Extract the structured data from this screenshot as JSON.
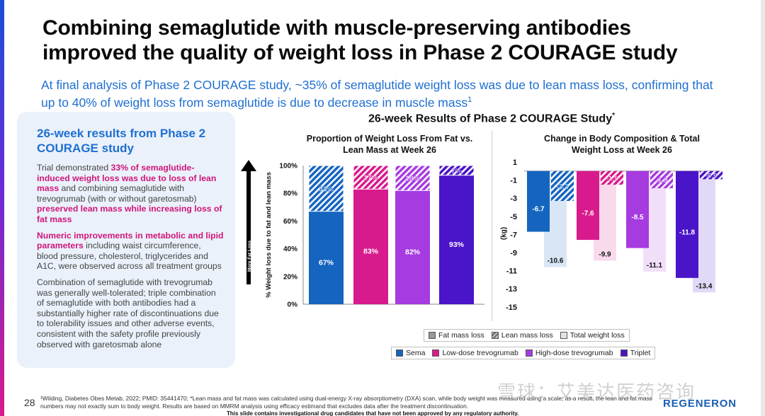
{
  "title": "Combining semaglutide with muscle-preserving antibodies improved the quality of weight loss in Phase 2 COURAGE study",
  "subtitle": "At final analysis of Phase 2 COURAGE study, ~35% of semaglutide weight loss was due to lean mass loss, confirming that up to 40% of weight loss from semaglutide is due to decrease in muscle mass",
  "subtitle_sup": "1",
  "side": {
    "title": "26-week results from Phase 2 COURAGE study",
    "p1_a": "Trial demonstrated ",
    "p1_b": "33% of semaglutide-induced weight loss was due to loss of lean mass",
    "p1_c": " and combining semaglutide with trevogrumab (with or without garetosmab) ",
    "p1_d": "preserved lean mass while increasing loss of fat mass",
    "p2_a": "Numeric improvements in metabolic and lipid parameters",
    "p2_b": " including waist circumference, blood pressure, cholesterol, triglycerides and A1C, were observed across all treatment groups",
    "p3": "Combination of semaglutide with trevogrumab was generally well-tolerated; triple combination of semaglutide with both antibodies had a substantially higher rate of discontinuations due to tolerability issues and other adverse events, consistent with the safety profile previously observed with garetosmab alone"
  },
  "chart_heading": "26-week Results of Phase 2 COURAGE Study",
  "chart_heading_sup": "*",
  "legend_mass": [
    "Fat mass loss",
    "Lean mass loss",
    "Total weight loss"
  ],
  "legend_groups": [
    "Sema",
    "Low-dose trevogrumab",
    "High-dose trevogrumab",
    "Triplet"
  ],
  "colors": {
    "sema": "#1565c0",
    "low": "#d81b8c",
    "high": "#a63be0",
    "triplet": "#4a14c8",
    "subtitle": "#1f6fd1",
    "highlight": "#d1157a"
  },
  "chart_data": [
    {
      "type": "bar",
      "stacked": true,
      "title": "Proportion of Weight Loss From Fat vs. Lean Mass at Week 26",
      "ylabel": "% Weight loss due to fat and lean mass",
      "arrow_label": "More Fat Loss",
      "categories": [
        "Sema",
        "Low-dose trevogrumab",
        "High-dose trevogrumab",
        "Triplet"
      ],
      "ylim": [
        0,
        100
      ],
      "yticks": [
        "0%",
        "20%",
        "40%",
        "60%",
        "80%",
        "100%"
      ],
      "series": [
        {
          "name": "Fat mass loss",
          "values": [
            67,
            83,
            82,
            93
          ],
          "labels": [
            "67%",
            "83%",
            "82%",
            "93%"
          ]
        },
        {
          "name": "Lean mass loss",
          "values": [
            33,
            17,
            18,
            7
          ],
          "labels": [
            "33%",
            "17%",
            "18%",
            "7%"
          ]
        }
      ]
    },
    {
      "type": "bar",
      "title": "Change in Body Composition & Total Weight Loss at Week 26",
      "ylabel": "(kg)",
      "categories": [
        "Sema",
        "Low-dose trevogrumab",
        "High-dose trevogrumab",
        "Triplet"
      ],
      "ylim": [
        -15,
        1
      ],
      "yticks": [
        "1",
        "-1",
        "-3",
        "-5",
        "-7",
        "-9",
        "-11",
        "-13",
        "-15"
      ],
      "series": [
        {
          "name": "Fat mass loss",
          "values": [
            -6.7,
            -7.6,
            -8.5,
            -11.8
          ],
          "labels": [
            "-6.7",
            "-7.6",
            "-8.5",
            "-11.8"
          ]
        },
        {
          "name": "Lean mass loss",
          "values": [
            -3.3,
            -1.5,
            -1.9,
            -0.9
          ],
          "labels": [
            "-3.3",
            "-1.5",
            "-1.9",
            "-0.9"
          ]
        },
        {
          "name": "Total weight loss",
          "values": [
            -10.6,
            -9.9,
            -11.1,
            -13.4
          ],
          "labels": [
            "-10.6",
            "-9.9",
            "-11.1",
            "-13.4"
          ]
        }
      ]
    }
  ],
  "page_number": "28",
  "footnote": "¹Wilding, Diabetes Obes Metab, 2022; PMID: 35441470; *Lean mass and fat mass was calculated using dual-energy X-ray absorptiometry (DXA) scan, while body weight was measured using a scale; as a result, the lean and fat mass numbers may not exactly sum to body weight. Results are based on MMRM analysis using efficacy estimand that excludes data after the treatment discontinuation.",
  "disclaimer": "This slide contains investigational drug candidates that have not been approved by any regulatory authority.",
  "watermark": "雪球：艾美达医药咨询",
  "logo": "REGENERON"
}
